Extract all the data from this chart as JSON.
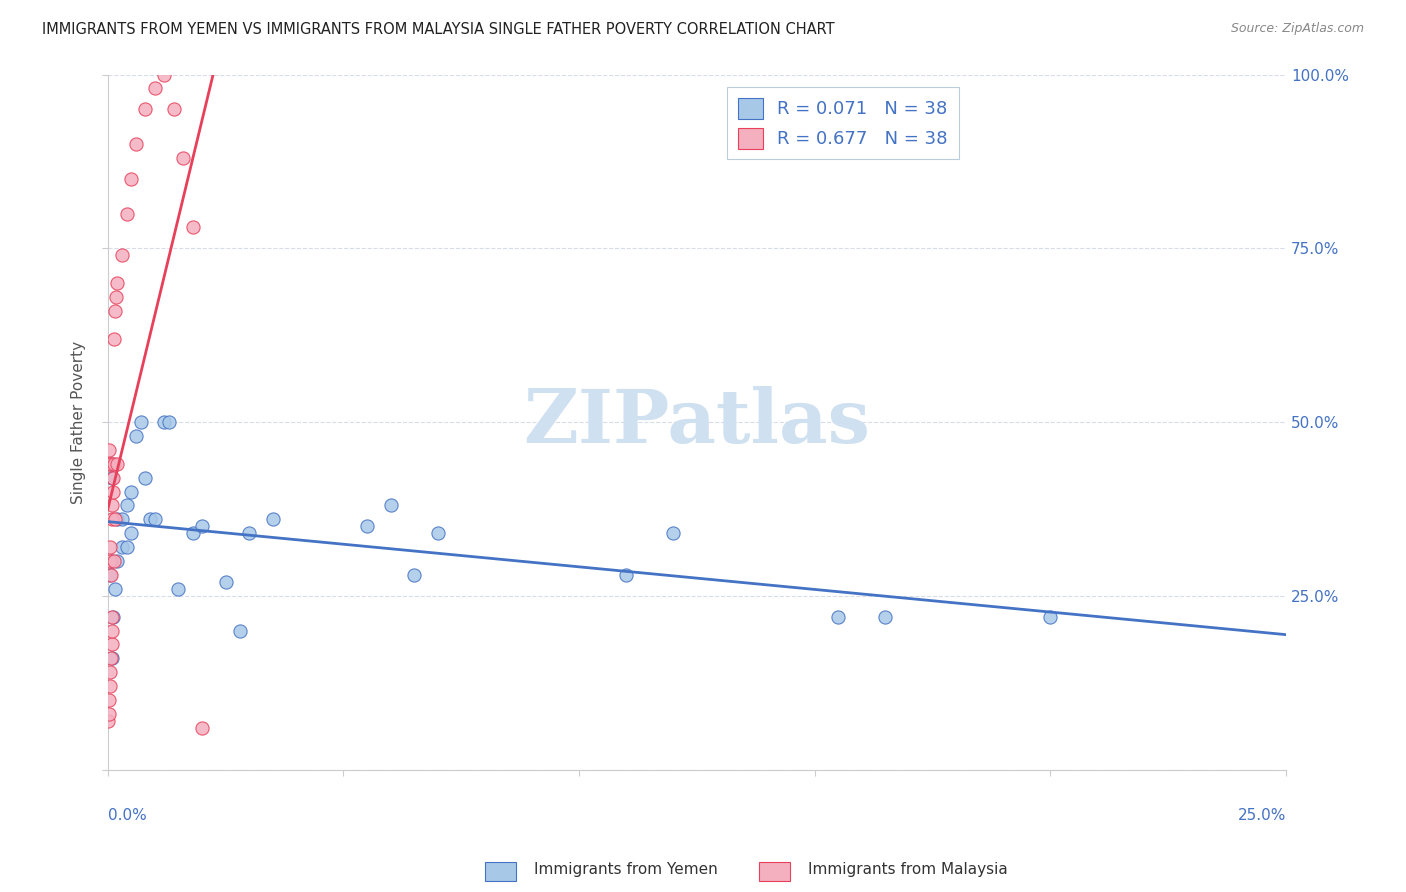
{
  "title": "IMMIGRANTS FROM YEMEN VS IMMIGRANTS FROM MALAYSIA SINGLE FATHER POVERTY CORRELATION CHART",
  "source": "Source: ZipAtlas.com",
  "ylabel": "Single Father Poverty",
  "xlim": [
    0.0,
    0.25
  ],
  "ylim": [
    0.0,
    1.0
  ],
  "legend_r_yemen": "R = 0.071",
  "legend_n_yemen": "N = 38",
  "legend_r_malaysia": "R = 0.677",
  "legend_n_malaysia": "N = 38",
  "color_yemen": "#a8c8e8",
  "color_malaysia": "#f5b0c0",
  "line_color_yemen": "#4472c4",
  "line_color_malaysia": "#e8405a",
  "watermark": "ZIPatlas",
  "watermark_color": "#cfe0f0",
  "title_color": "#222222",
  "axis_label_color": "#4472c4",
  "source_color": "#888888",
  "grid_color": "#d8dce8",
  "spine_color": "#cccccc",
  "yemen_x": [
    0.0005,
    0.0008,
    0.001,
    0.001,
    0.001,
    0.0012,
    0.0015,
    0.002,
    0.002,
    0.003,
    0.003,
    0.004,
    0.004,
    0.005,
    0.005,
    0.006,
    0.007,
    0.008,
    0.009,
    0.01,
    0.012,
    0.013,
    0.015,
    0.018,
    0.02,
    0.025,
    0.028,
    0.03,
    0.035,
    0.055,
    0.06,
    0.065,
    0.07,
    0.11,
    0.12,
    0.155,
    0.165,
    0.2
  ],
  "yemen_y": [
    0.28,
    0.44,
    0.42,
    0.3,
    0.16,
    0.22,
    0.26,
    0.36,
    0.3,
    0.36,
    0.32,
    0.38,
    0.32,
    0.4,
    0.34,
    0.48,
    0.5,
    0.42,
    0.36,
    0.36,
    0.5,
    0.5,
    0.26,
    0.34,
    0.35,
    0.27,
    0.2,
    0.34,
    0.36,
    0.35,
    0.38,
    0.28,
    0.34,
    0.28,
    0.34,
    0.22,
    0.22,
    0.22
  ],
  "malaysia_x": [
    0.0001,
    0.0002,
    0.0002,
    0.0003,
    0.0003,
    0.0004,
    0.0004,
    0.0005,
    0.0005,
    0.0006,
    0.0006,
    0.0007,
    0.0008,
    0.0008,
    0.0009,
    0.001,
    0.001,
    0.0011,
    0.0012,
    0.0013,
    0.0013,
    0.0014,
    0.0015,
    0.0016,
    0.0017,
    0.002,
    0.002,
    0.003,
    0.004,
    0.005,
    0.006,
    0.008,
    0.01,
    0.012,
    0.014,
    0.016,
    0.018,
    0.02
  ],
  "malaysia_y": [
    0.07,
    0.1,
    0.44,
    0.08,
    0.46,
    0.12,
    0.3,
    0.14,
    0.32,
    0.16,
    0.28,
    0.44,
    0.18,
    0.36,
    0.2,
    0.22,
    0.38,
    0.4,
    0.42,
    0.44,
    0.3,
    0.62,
    0.36,
    0.66,
    0.68,
    0.44,
    0.7,
    0.74,
    0.8,
    0.85,
    0.9,
    0.95,
    0.98,
    1.0,
    0.95,
    0.88,
    0.78,
    0.06
  ],
  "bottom_legend_label1": "Immigrants from Yemen",
  "bottom_legend_label2": "Immigrants from Malaysia"
}
